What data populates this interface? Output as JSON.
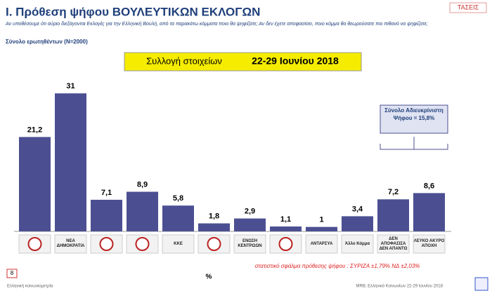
{
  "chart_data": {
    "type": "bar",
    "title": "Ι. Πρόθεση ψήφου ΒΟΥΛΕΥΤΙΚΩΝ ΕΚΛΟΓΩΝ",
    "subtitle": "Αν υποθέσουμε ότι αύριο διεξάγονται Εκλογές για την Ελληνική Βουλή, από τα παρακάτω κόμματα ποιο θα ψηφίζατε; Αν δεν έχετε αποφασίσει, ποιο κόμμα θα θεωρούσατε πιο πιθανό να ψηφίζατε;",
    "sample": "Σύνολο ερωτηθέντων (N=2000)",
    "period_label": "Συλλογή στοιχείων",
    "period": "22-29 Ιουνίου 2018",
    "brand": "ΤΑΣΕΙΣ",
    "annotation": "Σύνολο Αδιευκρίνιστη Ψήφου = 15,8%",
    "error_note": "στατιστικό σφάλμα πρόθεσης ψήφου : ΣΥΡΙΖΑ ±1,79% ΝΔ ±2,03%",
    "unit": "%",
    "page_number": "8",
    "footer_left": "Ελληνική κοινωνιομετρία",
    "footer_right": "MRB, Ελληνικό Κοινωνίων 22-29 Ιουνίου 2018",
    "categories": [
      null,
      "ΝΕΑ ΔΗΜΟΚΡΑΤΙΑ",
      null,
      null,
      "ΚΚΕ",
      null,
      "ΕΝΩΣΗ ΚΕΝΤΡΩΩΝ",
      null,
      "ΑΝΤΑΡΣΥΑ",
      "Άλλο Κόμμα",
      "ΔΕΝ ΑΠΟΦΑΣΙΣΑ ΔΕΝ ΑΠΑΝΤΩ",
      "ΛΕΥΚΟ ΑΚΥΡΟ ΑΠΟΧΗ"
    ],
    "values": [
      21.2,
      31,
      7.1,
      8.9,
      5.8,
      1.8,
      2.9,
      1.1,
      1,
      3.4,
      7.2,
      8.6
    ],
    "value_labels": [
      "21,2",
      "31",
      "7,1",
      "8,9",
      "5,8",
      "1,8",
      "2,9",
      "1,1",
      "1",
      "3,4",
      "7,2",
      "8,6"
    ],
    "color": "#4b4f92"
  }
}
